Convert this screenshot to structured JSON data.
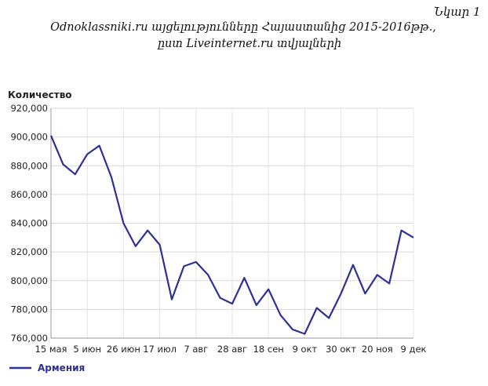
{
  "figure": {
    "number": "Նկար 1",
    "caption_line1": "Odnoklassniki.ru այցելությունները Հայաստանից 2015-2016թթ.,",
    "caption_line2": "ըստ Liveinternet.ru տվյալների"
  },
  "chart_data": {
    "type": "line",
    "title": "",
    "xlabel": "",
    "ylabel": "Количество",
    "ylim": [
      760000,
      920000
    ],
    "yticks": [
      "760,000",
      "780,000",
      "800,000",
      "820,000",
      "840,000",
      "860,000",
      "880,000",
      "900,000",
      "920,000"
    ],
    "xticks": [
      "15 мая",
      "5 июн",
      "26 июн",
      "17 июл",
      "7 авг",
      "28 авг",
      "18 сен",
      "9 окт",
      "30 окт",
      "20 ноя",
      "9 дек"
    ],
    "grid": true,
    "legend_position": "bottom-left",
    "series": [
      {
        "name": "Армения",
        "color": "#2e3192",
        "values": [
          901000,
          881000,
          874000,
          888000,
          894000,
          872000,
          840000,
          824000,
          835000,
          825000,
          787000,
          810000,
          813000,
          804000,
          788000,
          784000,
          802000,
          783000,
          794000,
          776000,
          766000,
          763000,
          781000,
          774000,
          791000,
          811000,
          791000,
          804000,
          798000,
          835000,
          830000
        ]
      }
    ]
  }
}
